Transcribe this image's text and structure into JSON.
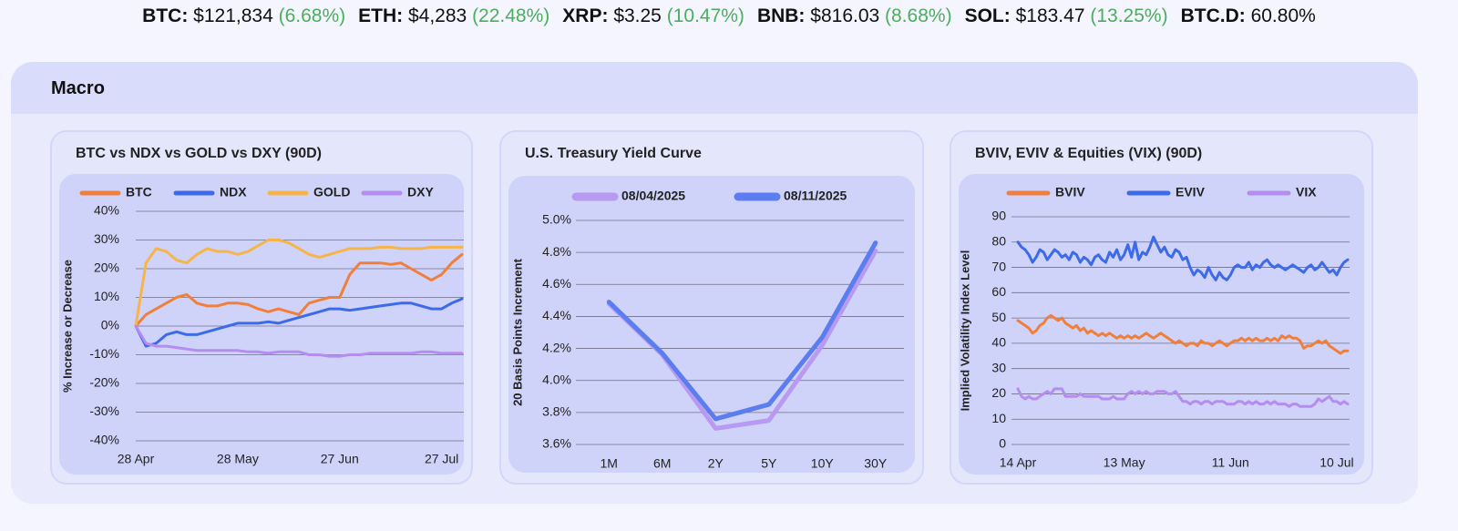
{
  "ticker": [
    {
      "label": "BTC:",
      "price": "$121,834",
      "change": "(6.68%)"
    },
    {
      "label": "ETH:",
      "price": "$4,283",
      "change": "(22.48%)"
    },
    {
      "label": "XRP:",
      "price": "$3.25",
      "change": "(10.47%)"
    },
    {
      "label": "BNB:",
      "price": "$816.03",
      "change": "(8.68%)"
    },
    {
      "label": "SOL:",
      "price": "$183.47",
      "change": "(13.25%)"
    },
    {
      "label": "BTC.D:",
      "price": "60.80%"
    }
  ],
  "section_title": "Macro",
  "chart_data": [
    {
      "type": "line",
      "title": "BTC vs NDX vs GOLD vs DXY (90D)",
      "y_label": "% Increase or Decrease",
      "grid": true,
      "legend": "top",
      "categories": [
        "28 Apr",
        null,
        null,
        null,
        null,
        null,
        null,
        null,
        null,
        null,
        "28 May",
        null,
        null,
        null,
        null,
        null,
        null,
        null,
        null,
        null,
        "27 Jun",
        null,
        null,
        null,
        null,
        null,
        null,
        null,
        null,
        null,
        "27 Jul",
        null,
        null
      ],
      "series": [
        {
          "name": "BTC",
          "color": "#f07f3c",
          "values": [
            0,
            4,
            6,
            8,
            10,
            11,
            8,
            7,
            7,
            8,
            8,
            7.5,
            6,
            5,
            6,
            5,
            4,
            8,
            9,
            10,
            10,
            18,
            22,
            22,
            22,
            21.5,
            22,
            20,
            18,
            16,
            18,
            22,
            25
          ]
        },
        {
          "name": "NDX",
          "color": "#3d6be8",
          "values": [
            0,
            -7,
            -6,
            -3,
            -2,
            -3,
            -3,
            -2,
            -1,
            0,
            1,
            1,
            1,
            1.5,
            1,
            2,
            3,
            4,
            5,
            6,
            6,
            5.5,
            6,
            6.5,
            7,
            7.5,
            8,
            8,
            7,
            6,
            6,
            8,
            9.5
          ]
        },
        {
          "name": "GOLD",
          "color": "#f5b54a",
          "values": [
            0,
            22,
            27,
            26,
            23,
            22,
            25,
            27,
            26,
            26,
            25,
            26,
            28,
            30,
            30,
            29,
            27,
            25,
            24,
            25,
            26,
            27,
            27,
            27,
            27.5,
            27.5,
            27,
            27,
            27,
            27.5,
            27.5,
            27.5,
            27.5
          ]
        },
        {
          "name": "DXY",
          "color": "#b58cf0",
          "values": [
            0,
            -6,
            -7,
            -7,
            -7.5,
            -8,
            -8.5,
            -8.5,
            -8.5,
            -8.5,
            -8.5,
            -9,
            -9,
            -9.5,
            -9,
            -9,
            -9,
            -10,
            -10,
            -10.5,
            -10.5,
            -10,
            -10,
            -9.5,
            -9.5,
            -9.5,
            -9.5,
            -9.5,
            -9,
            -9,
            -9.5,
            -9.5,
            -9.5
          ]
        }
      ],
      "ylim": [
        -40,
        40
      ],
      "yticks": [
        {
          "value": -40,
          "label": "-40%"
        },
        {
          "value": -30,
          "label": "-30%"
        },
        {
          "value": -20,
          "label": "-20%"
        },
        {
          "value": -10,
          "label": "-10%"
        },
        {
          "value": 0,
          "label": "0%"
        },
        {
          "value": 10,
          "label": "10%"
        },
        {
          "value": 20,
          "label": "20%"
        },
        {
          "value": 30,
          "label": "30%"
        },
        {
          "value": 40,
          "label": "40%"
        }
      ]
    },
    {
      "type": "line",
      "title": "U.S. Treasury Yield Curve",
      "y_label": "20 Basis Points Increment",
      "grid": true,
      "legend": "top",
      "categories": [
        "1M",
        "6M",
        "2Y",
        "5Y",
        "10Y",
        "30Y"
      ],
      "series": [
        {
          "name": "08/04/2025",
          "color": "#b99af2",
          "values": [
            4.48,
            4.16,
            3.7,
            3.75,
            4.22,
            4.81
          ]
        },
        {
          "name": "08/11/2025",
          "color": "#5b7df0",
          "values": [
            4.49,
            4.17,
            3.76,
            3.85,
            4.27,
            4.86
          ]
        }
      ],
      "ylim": [
        3.6,
        5.0
      ],
      "yticks": [
        {
          "value": 3.6,
          "label": "3.6%"
        },
        {
          "value": 3.8,
          "label": "3.8%"
        },
        {
          "value": 4.0,
          "label": "4.0%"
        },
        {
          "value": 4.2,
          "label": "4.2%"
        },
        {
          "value": 4.4,
          "label": "4.4%"
        },
        {
          "value": 4.6,
          "label": "4.6%"
        },
        {
          "value": 4.8,
          "label": "4.8%"
        },
        {
          "value": 5.0,
          "label": "5.0%"
        }
      ]
    },
    {
      "type": "line",
      "title": "BVIV, EVIV & Equities (VIX) (90D)",
      "y_label": "Implied Volatility Index Level",
      "grid": true,
      "legend": "top",
      "categories": [
        "14 Apr",
        null,
        null,
        null,
        null,
        null,
        null,
        null,
        null,
        null,
        null,
        null,
        null,
        null,
        null,
        null,
        null,
        null,
        null,
        null,
        null,
        null,
        null,
        null,
        null,
        null,
        null,
        null,
        null,
        "13 May",
        null,
        null,
        null,
        null,
        null,
        null,
        null,
        null,
        null,
        null,
        null,
        null,
        null,
        null,
        null,
        null,
        null,
        null,
        null,
        null,
        null,
        null,
        null,
        null,
        null,
        null,
        null,
        null,
        "11 Jun",
        null,
        null,
        null,
        null,
        null,
        null,
        null,
        null,
        null,
        null,
        null,
        null,
        null,
        null,
        null,
        null,
        null,
        null,
        null,
        null,
        null,
        null,
        null,
        null,
        null,
        null,
        null,
        null,
        "10 Jul",
        null,
        null,
        null
      ],
      "series": [
        {
          "name": "BVIV",
          "color": "#f07f3c",
          "values": [
            49,
            48,
            47,
            46,
            44,
            45,
            47,
            48,
            50,
            51,
            50,
            49,
            50,
            48,
            47,
            46,
            47,
            45,
            46,
            44,
            45,
            44,
            43,
            44,
            43,
            44,
            43,
            42,
            43,
            42,
            43,
            42,
            43,
            42,
            43,
            44,
            43,
            42,
            43,
            44,
            43,
            42,
            41,
            40,
            41,
            40,
            39,
            40,
            40,
            39,
            41,
            40,
            40,
            39,
            40,
            41,
            40,
            39,
            40,
            41,
            41,
            42,
            41,
            42,
            41,
            42,
            41,
            41,
            42,
            41,
            42,
            41,
            43,
            42,
            43,
            42,
            42,
            41,
            38,
            39,
            39,
            40,
            41,
            40,
            41,
            39,
            38,
            37,
            36,
            37,
            37
          ]
        },
        {
          "name": "EVIV",
          "color": "#3d6be8",
          "values": [
            80,
            78,
            77,
            75,
            72,
            74,
            77,
            76,
            73,
            75,
            77,
            76,
            74,
            75,
            73,
            76,
            75,
            72,
            74,
            73,
            71,
            74,
            75,
            73,
            72,
            76,
            74,
            77,
            73,
            75,
            79,
            74,
            80,
            73,
            76,
            75,
            78,
            82,
            79,
            76,
            78,
            75,
            74,
            77,
            76,
            73,
            74,
            70,
            67,
            69,
            68,
            66,
            70,
            67,
            65,
            68,
            66,
            65,
            67,
            70,
            71,
            70,
            70,
            72,
            69,
            71,
            70,
            72,
            73,
            71,
            70,
            71,
            70,
            69,
            70,
            71,
            70,
            69,
            68,
            70,
            71,
            69,
            70,
            72,
            70,
            68,
            69,
            67,
            70,
            72,
            73
          ]
        },
        {
          "name": "VIX",
          "color": "#b58cf0",
          "values": [
            22,
            19,
            18,
            19,
            18,
            18,
            19,
            20,
            21,
            20,
            22,
            22,
            22,
            19,
            19,
            19,
            19,
            20,
            19,
            19,
            19,
            19,
            19,
            18,
            18,
            18,
            19,
            18,
            18,
            18,
            20,
            21,
            20,
            21,
            20,
            21,
            20,
            20,
            21,
            21,
            21,
            20,
            20,
            21,
            19,
            17,
            17,
            16,
            17,
            17,
            16,
            17,
            17,
            16,
            17,
            17,
            17,
            16,
            16,
            16,
            17,
            17,
            16,
            17,
            16,
            17,
            16,
            16,
            17,
            16,
            17,
            16,
            16,
            16,
            15,
            16,
            16,
            15,
            15,
            15,
            15,
            16,
            18,
            17,
            18,
            19,
            17,
            17,
            16,
            17,
            16
          ]
        }
      ],
      "ylim": [
        0,
        90
      ],
      "yticks": [
        0,
        10,
        20,
        30,
        40,
        50,
        60,
        70,
        80,
        90
      ]
    }
  ]
}
